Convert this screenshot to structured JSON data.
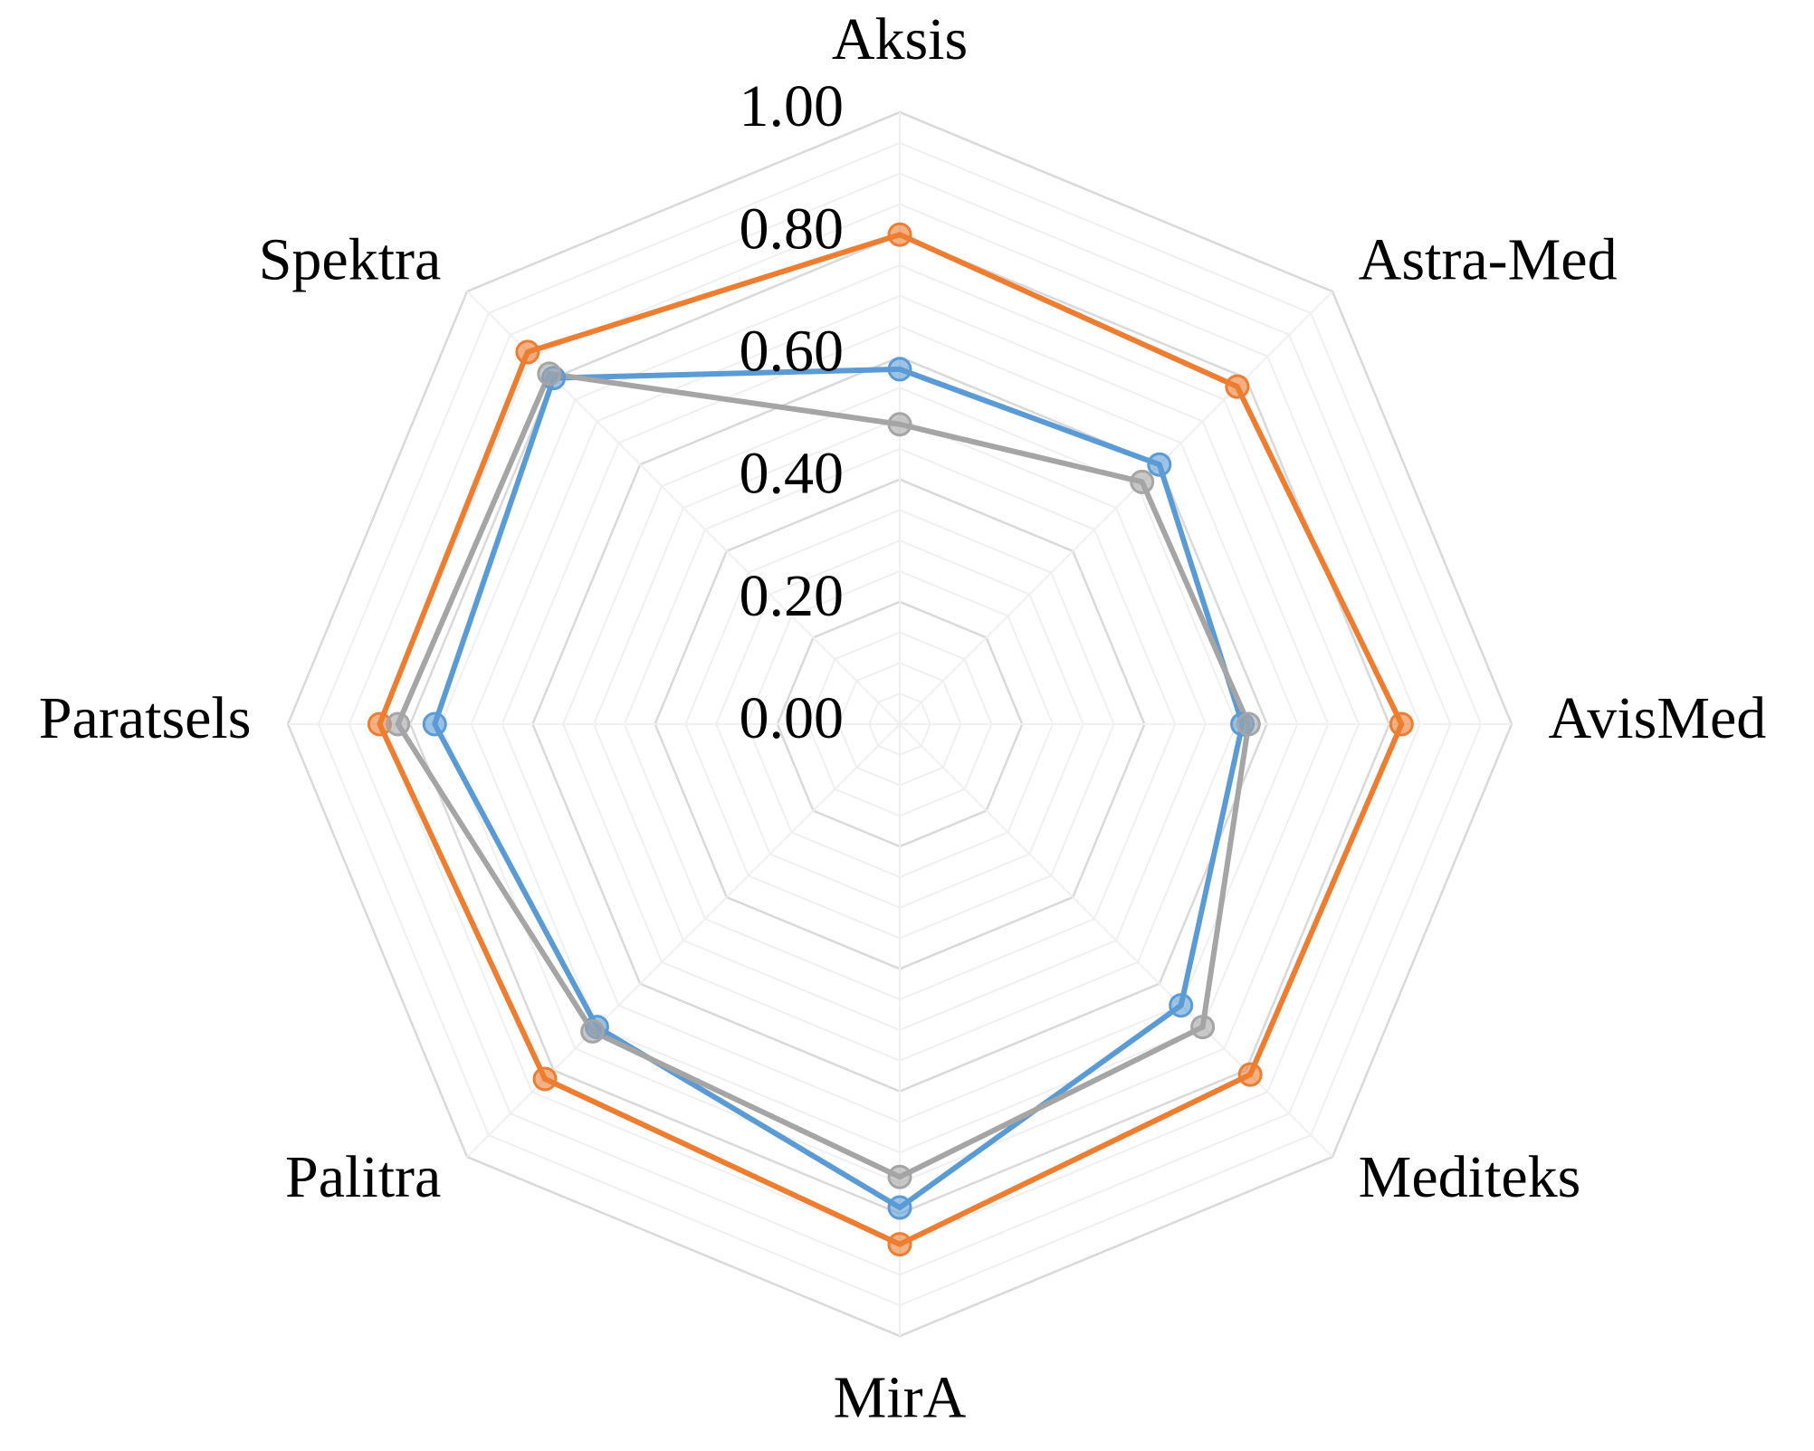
{
  "chart_data": {
    "type": "radar",
    "categories": [
      "Aksis",
      "Astra-Med",
      "AvisMed",
      "Mediteks",
      "MirA",
      "Palitra",
      "Paratsels",
      "Spektra"
    ],
    "series": [
      {
        "color": "#ed7d31",
        "values": [
          0.8,
          0.78,
          0.82,
          0.81,
          0.85,
          0.82,
          0.85,
          0.86
        ]
      },
      {
        "color": "#5b9bd5",
        "values": [
          0.58,
          0.6,
          0.56,
          0.65,
          0.79,
          0.7,
          0.76,
          0.8
        ]
      },
      {
        "color": "#a5a5a5",
        "values": [
          0.49,
          0.56,
          0.57,
          0.7,
          0.74,
          0.71,
          0.82,
          0.81
        ]
      }
    ],
    "ylim": [
      0,
      1
    ],
    "yticks": [
      {
        "value": 0,
        "label": "0.00"
      },
      {
        "value": 0.2,
        "label": "0.20"
      },
      {
        "value": 0.4,
        "label": "0.40"
      },
      {
        "value": 0.6,
        "label": "0.60"
      },
      {
        "value": 0.8,
        "label": "0.80"
      },
      {
        "value": 1,
        "label": "1.00"
      }
    ],
    "grid": true
  }
}
